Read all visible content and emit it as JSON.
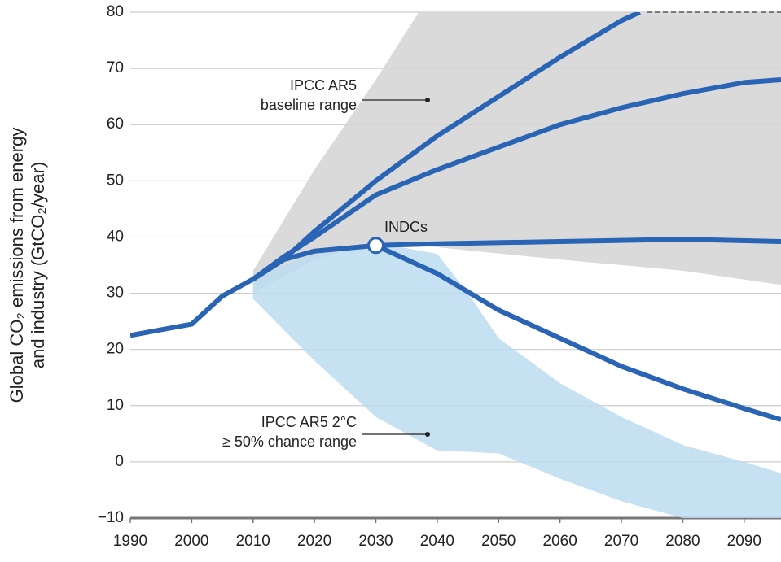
{
  "chart_data": {
    "type": "line",
    "y_label": [
      "Global CO₂ emissions from energy",
      "and industry (GtCO₂/year)"
    ],
    "xlim": [
      1990,
      2096
    ],
    "ylim": [
      -10,
      80
    ],
    "xticks": [
      1990,
      2000,
      2010,
      2020,
      2030,
      2040,
      2050,
      2060,
      2070,
      2080,
      2090
    ],
    "yticks": [
      {
        "value": -10,
        "label": "−10"
      },
      0,
      10,
      20,
      30,
      40,
      50,
      60,
      70,
      80
    ],
    "grid": true,
    "bands": [
      {
        "color": "#d4d4d4",
        "x": [
          2010,
          2020,
          2030,
          2037,
          2060,
          2080,
          2096
        ],
        "high": [
          34,
          52,
          68,
          80,
          80,
          80,
          80
        ],
        "low": [
          30,
          36,
          39,
          38.5,
          36,
          34,
          31.5
        ]
      },
      {
        "color": "#bcdcee",
        "x": [
          2010,
          2020,
          2030,
          2040,
          2045,
          2050,
          2060,
          2070,
          2080,
          2090,
          2096
        ],
        "high": [
          33,
          37,
          39,
          37,
          30,
          22,
          14,
          8,
          3,
          0,
          -2
        ],
        "low": [
          29,
          18,
          8,
          2,
          1.8,
          1.5,
          -3,
          -7,
          -10,
          -10,
          -10
        ]
      }
    ],
    "series": [
      {
        "color": "#2a64b4",
        "x": [
          1990,
          1995,
          2000,
          2005,
          2010
        ],
        "values": [
          22.5,
          23.5,
          24.5,
          29.5,
          32.5
        ]
      },
      {
        "color": "#2a64b4",
        "x": [
          2010,
          2015,
          2020,
          2030,
          2040,
          2050,
          2060,
          2070,
          2073
        ],
        "values": [
          32.5,
          36,
          41,
          50,
          58,
          65,
          72,
          78.5,
          80
        ]
      },
      {
        "color": "#2a64b4",
        "x": [
          2010,
          2015,
          2020,
          2030,
          2040,
          2050,
          2060,
          2070,
          2080,
          2090,
          2096
        ],
        "values": [
          32.5,
          36.5,
          40,
          47.5,
          52,
          56,
          60,
          63,
          65.5,
          67.5,
          68
        ]
      },
      {
        "color": "#2a64b4",
        "x": [
          2010,
          2015,
          2020,
          2030,
          2040,
          2060,
          2080,
          2096
        ],
        "values": [
          32.5,
          36,
          37.5,
          38.5,
          38.8,
          39.2,
          39.6,
          39.2
        ]
      },
      {
        "color": "#2a64b4",
        "x": [
          2030,
          2040,
          2050,
          2060,
          2070,
          2080,
          2090,
          2096
        ],
        "values": [
          38.5,
          33.5,
          27,
          22,
          17,
          13,
          9.5,
          7.5
        ]
      }
    ],
    "annotations": [
      {
        "lines": [
          "IPCC AR5",
          "baseline range"
        ]
      },
      {
        "lines": [
          "INDCs"
        ]
      },
      {
        "lines": [
          "IPCC AR5 2°C",
          "≥ 50% chance range"
        ]
      }
    ]
  }
}
